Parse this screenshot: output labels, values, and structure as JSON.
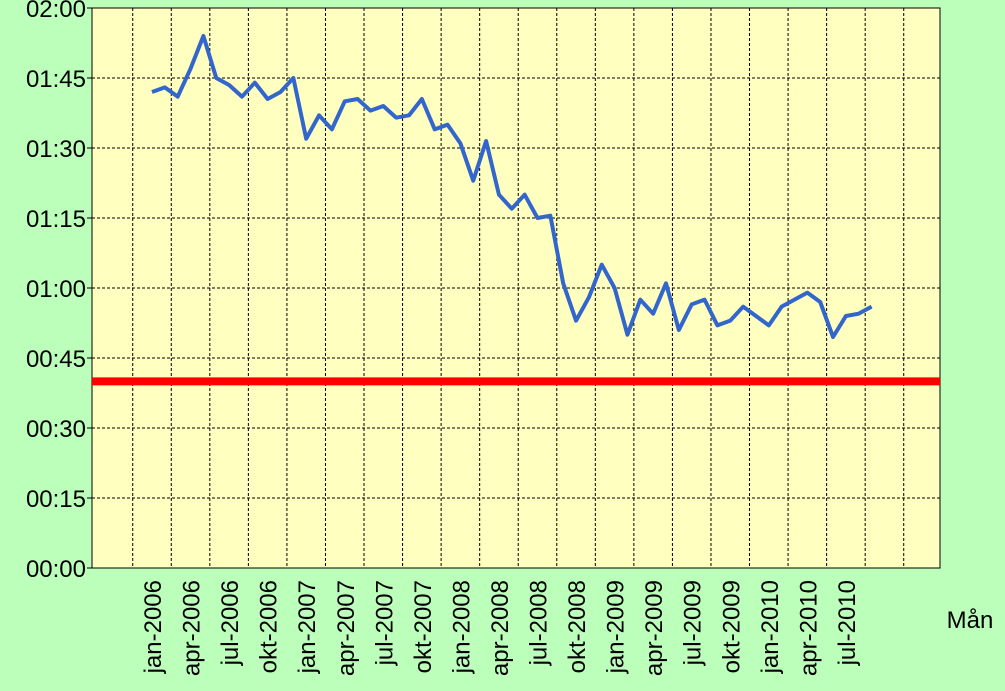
{
  "chart_data": {
    "type": "line",
    "x_label": "Mån",
    "categories": [
      "jan-2006",
      null,
      null,
      "apr-2006",
      null,
      null,
      "jul-2006",
      null,
      null,
      "okt-2006",
      null,
      null,
      "jan-2007",
      null,
      null,
      "apr-2007",
      null,
      null,
      "jul-2007",
      null,
      null,
      "okt-2007",
      null,
      null,
      "jan-2008",
      null,
      null,
      "apr-2008",
      null,
      null,
      "jul-2008",
      null,
      null,
      "okt-2008",
      null,
      null,
      "jan-2009",
      null,
      null,
      "apr-2009",
      null,
      null,
      "jul-2009",
      null,
      null,
      "okt-2009",
      null,
      null,
      "jan-2010",
      null,
      null,
      "apr-2010",
      null,
      null,
      "jul-2010",
      null,
      null
    ],
    "series": [
      {
        "color": "#3366cc",
        "values": [
          102,
          103,
          101,
          107,
          114,
          105,
          103.5,
          101,
          104,
          100.5,
          102,
          105,
          92,
          97,
          94,
          100,
          100.5,
          98,
          99,
          96.5,
          97,
          100.5,
          94,
          95,
          91,
          83,
          91.5,
          80,
          77,
          80,
          75,
          75.5,
          61,
          53,
          58,
          65,
          60,
          50,
          57.5,
          54.5,
          61,
          51,
          56.5,
          57.5,
          52,
          53,
          56,
          54,
          52,
          56,
          57.5,
          59,
          57,
          49.5,
          54,
          54.5,
          56
        ]
      }
    ],
    "reference_line": {
      "value": 40,
      "color": "#ff0000"
    },
    "ylim": [
      0,
      120
    ],
    "yticks": [
      {
        "value": 0,
        "label": "00:00"
      },
      {
        "value": 15,
        "label": "00:15"
      },
      {
        "value": 30,
        "label": "00:30"
      },
      {
        "value": 45,
        "label": "00:45"
      },
      {
        "value": 60,
        "label": "01:00"
      },
      {
        "value": 75,
        "label": "01:15"
      },
      {
        "value": 90,
        "label": "01:30"
      },
      {
        "value": 105,
        "label": "01:45"
      },
      {
        "value": 120,
        "label": "02:00"
      }
    ],
    "grid": true
  }
}
